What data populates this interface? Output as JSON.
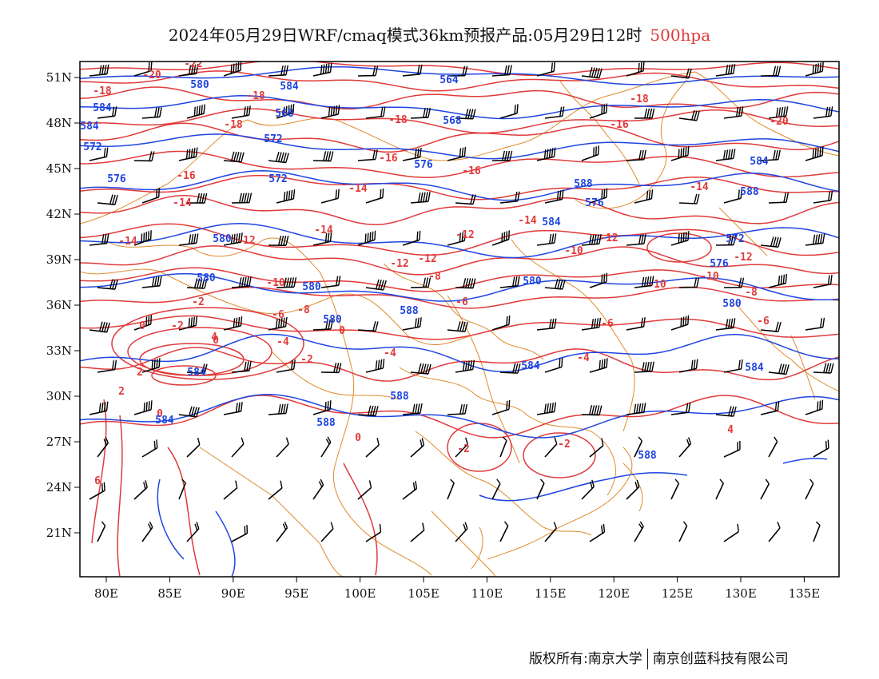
{
  "title": {
    "main": "2024年05月29日WRF/cmaq模式36km预报产品:05月29日12时",
    "level": "500hpa",
    "level_color": "#e03a3a"
  },
  "footer": {
    "copyright": "版权所有:南京大学",
    "company": "南京创蓝科技有限公司"
  },
  "colors": {
    "temperature": "#e03a3a",
    "geopotential": "#1f45e0",
    "boundary": "#e08a2c",
    "barb": "#000000"
  },
  "axes": {
    "lon_ticks": [
      "80E",
      "85E",
      "90E",
      "95E",
      "100E",
      "105E",
      "110E",
      "115E",
      "120E",
      "125E",
      "130E",
      "135E"
    ],
    "lat_ticks": [
      "51N",
      "48N",
      "45N",
      "42N",
      "39N",
      "36N",
      "33N",
      "30N",
      "27N",
      "24N",
      "21N"
    ]
  },
  "temp_labels": [
    "-22",
    "-20",
    "-20",
    "-18",
    "-18",
    "-18",
    "-18",
    "-18",
    "-16",
    "-16",
    "-16",
    "-16",
    "-14",
    "-14",
    "-14",
    "-14",
    "-14",
    "-14",
    "-12",
    "-12",
    "-12",
    "-12",
    "-12",
    "-12",
    "-10",
    "-10",
    "-10",
    "-10",
    "-8",
    "-8",
    "-8",
    "-6",
    "-6",
    "-6",
    "-6",
    "-4",
    "-4",
    "-4",
    "-2",
    "-2",
    "-2",
    "-2",
    "-2",
    "0",
    "0",
    "0",
    "0",
    "0",
    "2",
    "2",
    "4",
    "4",
    "6",
    "-20"
  ],
  "geo_labels": [
    "580",
    "584",
    "564",
    "584",
    "584",
    "568",
    "568",
    "572",
    "572",
    "576",
    "576",
    "572",
    "584",
    "588",
    "576",
    "584",
    "588",
    "572",
    "580",
    "576",
    "580",
    "580",
    "580",
    "588",
    "580",
    "580",
    "584",
    "584",
    "584",
    "588",
    "588",
    "584",
    "588"
  ]
}
